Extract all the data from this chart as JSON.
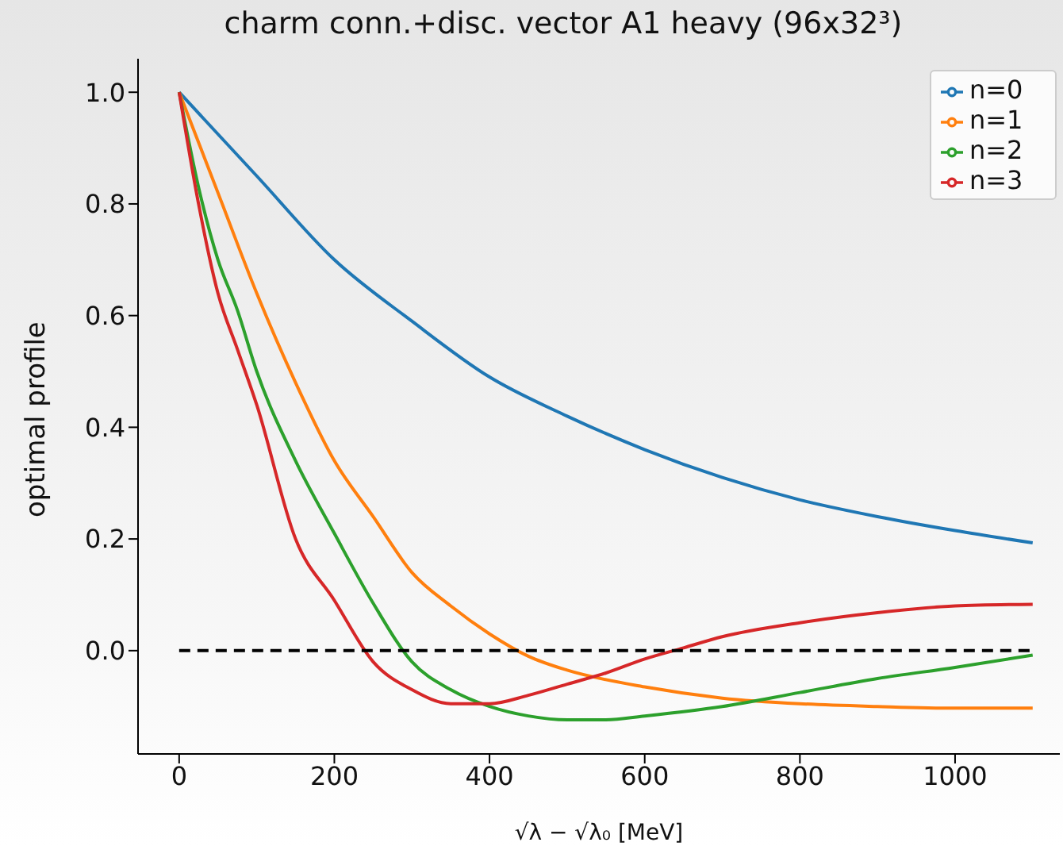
{
  "chart_data": {
    "type": "line",
    "title": "charm conn.+disc. vector A1 heavy (96x32³)",
    "xlabel": "√λ − √λ₀ [MeV]",
    "ylabel": "optimal profile",
    "xlim": [
      -53,
      1135
    ],
    "ylim": [
      -0.185,
      1.06
    ],
    "xticks": [
      0,
      200,
      400,
      600,
      800,
      1000
    ],
    "yticks": [
      {
        "value": 0,
        "label": "0.0"
      },
      {
        "value": 0.2,
        "label": "0.2"
      },
      {
        "value": 0.4,
        "label": "0.4"
      },
      {
        "value": 0.6,
        "label": "0.6"
      },
      {
        "value": 0.8,
        "label": "0.8"
      },
      {
        "value": 1,
        "label": "1.0"
      }
    ],
    "legend": "top right",
    "marker": "none",
    "series": [
      {
        "name": "n=0",
        "color": "#1f77b4",
        "line_style": "solid",
        "x": [
          0,
          100,
          200,
          300,
          400,
          500,
          600,
          700,
          800,
          900,
          1000,
          1100
        ],
        "values": [
          1,
          0.85,
          0.7,
          0.59,
          0.49,
          0.42,
          0.36,
          0.31,
          0.27,
          0.24,
          0.215,
          0.193
        ]
      },
      {
        "name": "n=1",
        "color": "#ff7f0e",
        "line_style": "solid",
        "x": [
          0,
          50,
          100,
          150,
          200,
          250,
          300,
          350,
          400,
          450,
          500,
          600,
          700,
          800,
          900,
          1000,
          1100
        ],
        "values": [
          1,
          0.82,
          0.64,
          0.48,
          0.34,
          0.24,
          0.14,
          0.08,
          0.03,
          -0.01,
          -0.035,
          -0.065,
          -0.085,
          -0.095,
          -0.1,
          -0.103,
          -0.103
        ]
      },
      {
        "name": "n=2",
        "color": "#2ca02c",
        "line_style": "solid",
        "x": [
          0,
          25,
          50,
          75,
          100,
          150,
          200,
          250,
          300,
          350,
          400,
          450,
          500,
          550,
          600,
          700,
          800,
          900,
          1000,
          1100
        ],
        "values": [
          1,
          0.83,
          0.7,
          0.61,
          0.5,
          0.34,
          0.21,
          0.085,
          -0.02,
          -0.07,
          -0.1,
          -0.117,
          -0.124,
          -0.124,
          -0.117,
          -0.1,
          -0.075,
          -0.05,
          -0.03,
          -0.008
        ]
      },
      {
        "name": "n=3",
        "color": "#d62728",
        "line_style": "solid",
        "x": [
          0,
          25,
          50,
          75,
          100,
          150,
          200,
          250,
          300,
          350,
          400,
          450,
          500,
          550,
          600,
          650,
          700,
          800,
          900,
          1000,
          1100
        ],
        "values": [
          1,
          0.8,
          0.64,
          0.54,
          0.44,
          0.2,
          0.09,
          -0.02,
          -0.07,
          -0.095,
          -0.095,
          -0.08,
          -0.06,
          -0.04,
          -0.015,
          0.005,
          0.025,
          0.05,
          0.068,
          0.08,
          0.083
        ]
      },
      {
        "color": "#000000",
        "line_style": "dashed",
        "x": [
          0,
          1100
        ],
        "values": [
          0,
          0
        ]
      }
    ]
  }
}
